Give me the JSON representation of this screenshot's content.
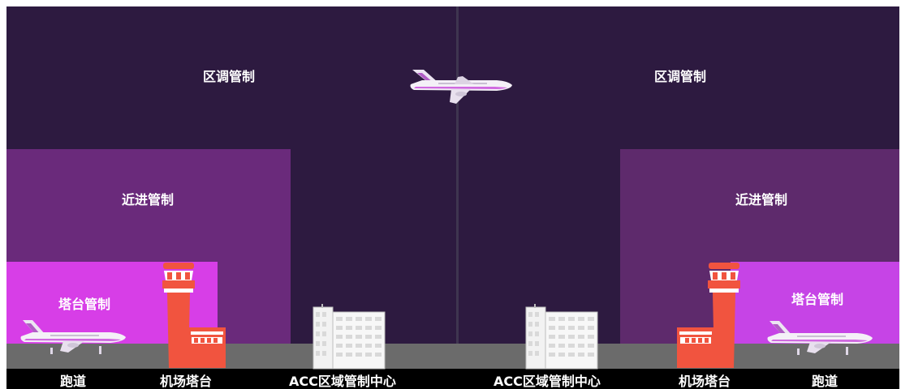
{
  "left": {
    "acc_label": "区调管制",
    "approach_label": "近进管制",
    "tower_label": "塔台管制"
  },
  "right": {
    "acc_label": "区调管制",
    "approach_label": "近进管制",
    "tower_label": "塔台管制"
  },
  "footer": {
    "labels": [
      "跑道",
      "机场塔台",
      "ACC区域管制中心",
      "ACC区域管制中心",
      "机场塔台",
      "跑道"
    ]
  },
  "colors": {
    "acc": "#2d1a40",
    "approach": "#6a2a7b",
    "approach_right": "#5e2a6c",
    "tower": "#d73ee7",
    "tower_right": "#c644e6",
    "tower_building": "#f1543f",
    "ground": "#6b6b6b"
  },
  "icons": [
    "airplane-icon",
    "control-tower-icon",
    "office-building-icon"
  ]
}
